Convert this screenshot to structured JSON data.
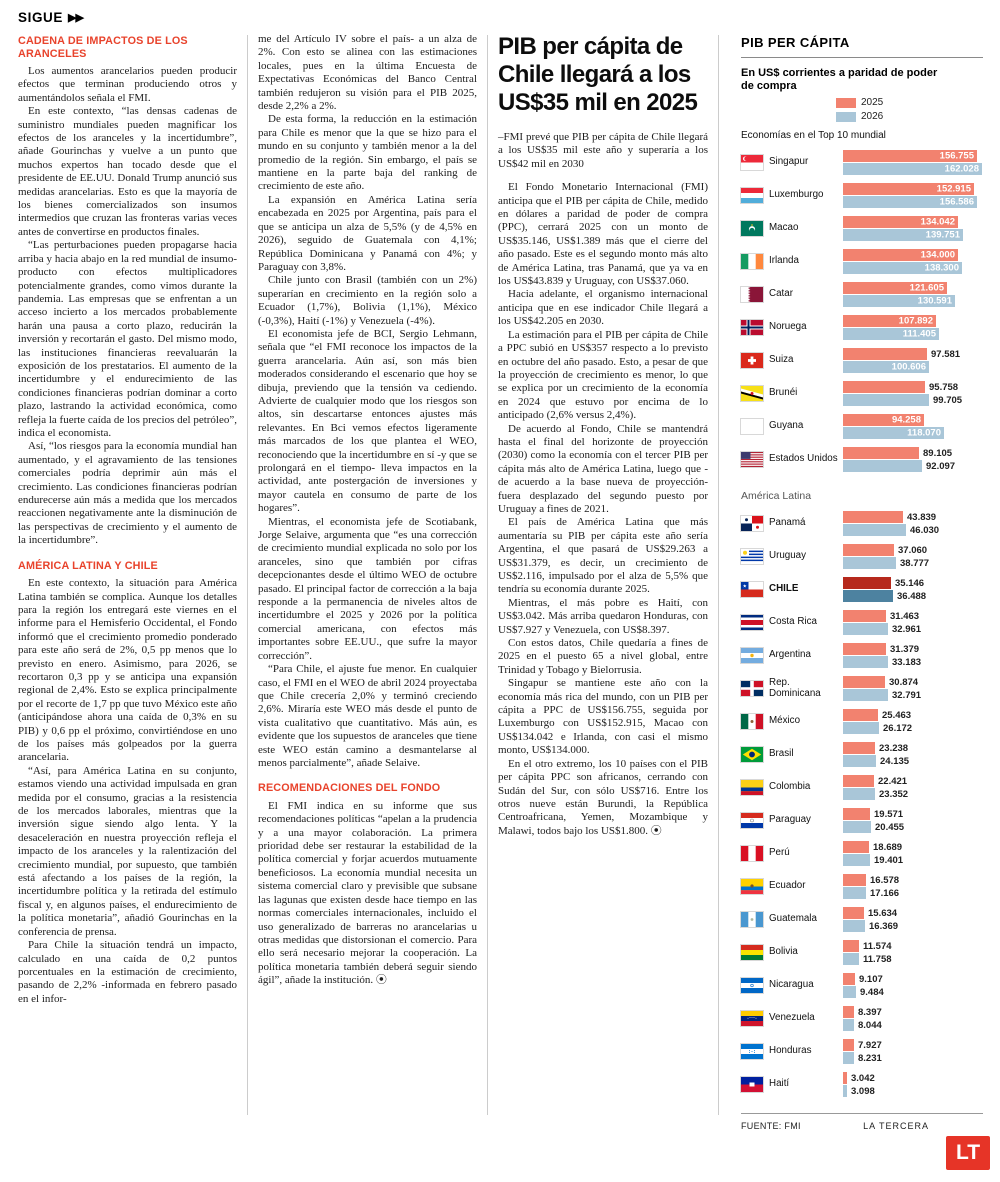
{
  "page": {
    "kicker": "SIGUE",
    "kicker_arrows": "▶▶"
  },
  "article": {
    "column1": {
      "sections": [
        {
          "heading": "CADENA DE IMPACTOS DE LOS ARANCELES",
          "paragraphs": [
            "Los aumentos arancelarios pueden producir efectos que terminan produciendo otros y aumentándolos señala el FMI.",
            "En este contexto, “las densas cadenas de suministro mundiales pueden magnificar los efectos de los aranceles y la incertidumbre”, añade Gourinchas y vuelve a un punto que muchos expertos han tocado desde que el presidente de EE.UU. Donald Trump anunció sus medidas arancelarias. Esto es que la mayoría de los bienes comercializados son insumos intermedios que cruzan las fronteras varias veces antes de convertirse en productos finales.",
            "“Las perturbaciones pueden propagarse hacia arriba y hacia abajo en la red mundial de insumo-producto con efectos multiplicadores potencialmente grandes, como vimos durante la pandemia. Las empresas que se enfrentan a un acceso incierto a los mercados probablemente harán una pausa a corto plazo, reducirán la inversión y recortarán el gasto. Del mismo modo, las instituciones financieras reevaluarán la exposición de los prestatarios. El aumento de la incertidumbre y el endurecimiento de las condiciones financieras podrían dominar a corto plazo, lastrando la actividad económica, como refleja la fuerte caída de los precios del petróleo”, indica el economista.",
            "Así, “los riesgos para la economía mundial han aumentado, y el agravamiento de las tensiones comerciales podría deprimir aún más el crecimiento. Las condiciones financieras podrían endurecerse aún más a medida que los mercados reaccionen negativamente ante la disminución de las perspectivas de crecimiento y el aumento de la incertidumbre”."
          ]
        },
        {
          "heading": "AMÉRICA LATINA Y CHILE",
          "paragraphs": [
            "En este contexto, la situación para América Latina también se complica. Aunque los detalles para la región los entregará este viernes en el informe para el Hemisferio Occidental, el Fondo informó que el crecimiento promedio ponderado para este año será de 2%, 0,5 pp menos que lo previsto en enero. Asimismo, para 2026, se recortaron 0,3 pp y se anticipa una expansión regional de 2,4%. Esto se explica principalmente por el recorte de 1,7 pp que tuvo México este año (anticipándose ahora una caída de 0,3% en su PIB) y 0,6 pp el próximo, convirtiéndose en uno de los países más golpeados por la guerra arancelaria.",
            "“Así, para América Latina en su conjunto, estamos viendo una actividad impulsada en gran medida por el consumo, gracias a la resistencia de los mercados laborales, mientras que la inversión sigue siendo algo lenta. Y la desaceleración en nuestra proyección refleja el impacto de los aranceles y la ralentización del crecimiento mundial, por supuesto, que también está afectando a los países de la región, la incertidumbre política y la retirada del estímulo fiscal y, en algunos países, el endurecimiento de la política monetaria”, añadió Gourinchas en la conferencia de prensa.",
            "Para Chile la situación tendrá un impacto, calculado en una caída de 0,2 puntos porcentuales en la estimación de crecimiento, pasando de 2,2% -informada en febrero pasado en el infor-"
          ]
        }
      ]
    },
    "column2": {
      "sections": [
        {
          "heading": null,
          "paragraphs": [
            "me del Artículo IV sobre el país- a un alza de 2%. Con esto se alinea con las estimaciones locales, pues en la última Encuesta de Expectativas Económicas del Banco Central también redujeron su visión para el PIB 2025, desde 2,2% a 2%.",
            "De esta forma, la reducción en la estimación para Chile es menor que la que se hizo para el mundo en su conjunto y también menor a la del promedio de la región. Sin embargo, el país se mantiene en la parte baja del ranking de crecimiento de este año.",
            "La expansión en América Latina sería encabezada en 2025 por Argentina, país para el que se anticipa un alza de 5,5% (y de 4,5% en 2026), seguido de Guatemala con 4,1%; República Dominicana y Panamá con 4%; y Paraguay con 3,8%.",
            "Chile junto con Brasil (también con un 2%) superarían en crecimiento en la región solo a Ecuador (1,7%), Bolivia (1,1%), México (-0,3%), Haití (-1%) y Venezuela (-4%).",
            "El economista jefe de BCI, Sergio Lehmann, señala que “el FMI reconoce los impactos de la guerra arancelaria. Aún así, son más bien moderados considerando el escenario que hoy se dibuja, previendo que la tensión va cediendo. Advierte de cualquier modo que los riesgos son altos, sin descartarse entonces ajustes más relevantes. En Bci vemos efectos ligeramente más marcados de los que plantea el WEO, reconociendo que la incertidumbre en sí -y que se prolongará en el tiempo- lleva impactos en la actividad, ante postergación de inversiones y mayor cautela en consumo de parte de los hogares”.",
            "Mientras, el economista jefe de Scotiabank, Jorge Selaive, argumenta que “es una corrección de crecimiento mundial explicada no solo por los aranceles, sino que también por cifras decepcionantes desde el último WEO de octubre pasado. El principal factor de corrección a la baja responde a la permanencia de niveles altos de incertidumbre el 2025 y 2026 por la política comercial americana, con efectos más importantes sobre EE.UU., que sufre la mayor corrección”.",
            "“Para Chile, el ajuste fue menor. En cualquier caso, el FMI en el WEO de abril 2024 proyectaba que Chile crecería 2,0% y terminó creciendo 2,6%. Miraría este WEO más desde el punto de vista cualitativo que cuantitativo. Más aún, es evidente que los supuestos de aranceles que tiene este WEO están camino a desmantelarse al menos parcialmente”, añade Selaive."
          ]
        },
        {
          "heading": "RECOMENDACIONES DEL FONDO",
          "paragraphs": [
            "El FMI indica en su informe que sus recomendaciones políticas “apelan a la prudencia y a una mayor colaboración. La primera prioridad debe ser restaurar la estabilidad de la política comercial y forjar acuerdos mutuamente beneficiosos. La economía mundial necesita un sistema comercial claro y previsible que subsane las lagunas que existen desde hace tiempo en las normas comerciales internacionales, incluido el uso generalizado de barreras no arancelarias u otras medidas que distorsionan el comercio. Para ello será necesario mejorar la cooperación. La política monetaria también deberá seguir siendo ágil”, añade la institución. ⦿"
          ]
        }
      ]
    },
    "column3": {
      "headline": "PIB per cápita de Chile llegará a los US$35 mil en 2025",
      "deck": "–FMI prevé que PIB per cápita de Chile llegará a los US$35 mil este año y superaría a los US$42 mil en 2030",
      "paragraphs": [
        "El Fondo Monetario Internacional (FMI) anticipa que el PIB per cápita de Chile, medido en dólares a paridad de poder de compra (PPC), cerrará 2025 con un monto de US$35.146, US$1.389 más que el cierre del año pasado. Este es el segundo monto más alto de América Latina, tras Panamá, que ya va en los US$43.839 y Uruguay, con US$37.060.",
        "Hacia adelante, el organismo internacional anticipa que en ese indicador Chile llegará a los US$42.205 en 2030.",
        "La estimación para el PIB per cápita de Chile a PPC subió en US$357 respecto a lo previsto en octubre del año pasado. Esto, a pesar de que la proyección de crecimiento es menor, lo que se explica por un crecimiento de la economía en 2024 que estuvo por encima de lo anticipado (2,6% versus 2,4%).",
        "De acuerdo al Fondo, Chile se mantendrá hasta el final del horizonte de proyección (2030) como la economía con el tercer PIB per cápita más alto de América Latina, luego que -de acuerdo a la base nueva de proyección- fuera desplazado del segundo puesto por Uruguay a fines de 2021.",
        "El país de América Latina que más aumentaría su PIB per cápita este año sería Argentina, el que pasará de US$29.263 a US$31.379, es decir, un crecimiento de US$2.116, impulsado por el alza de 5,5% que tendría su economía durante 2025.",
        "Mientras, el más pobre es Haití, con US$3.042. Más arriba quedaron Honduras, con US$7.927 y Venezuela, con US$8.397.",
        "Con estos datos, Chile quedaría a fines de 2025 en el puesto 65 a nivel global, entre Trinidad y Tobago y Bielorrusia.",
        "Singapur se mantiene este año con la economía más rica del mundo, con un PIB per cápita a PPC de US$156.755, seguida por Luxemburgo con US$152.915, Macao con US$134.042 e Irlanda, con casi el mismo monto, US$134.000.",
        "En el otro extremo, los 10 países con el PIB per cápita PPC son africanos, cerrando con Sudán del Sur, con sólo US$716. Entre los otros nueve están Burundi, la República Centroafricana, Yemen, Mozambique y Malawi, todos bajo los US$1.800. ⦿"
      ]
    }
  },
  "chart_data": {
    "type": "bar",
    "title": "PIB PER CÁPITA",
    "subtitle": "En US$ corrientes a paridad de poder de compra",
    "legend": [
      {
        "label": "2025",
        "color": "#f2826f"
      },
      {
        "label": "2026",
        "color": "#a9c6d8"
      }
    ],
    "highlight_colors": [
      "#b6291c",
      "#4d82a0"
    ],
    "groups": [
      {
        "label": "Economías en el Top 10 mundial",
        "max": 162028,
        "countries": [
          {
            "name": "Singapur",
            "flag": "singapore",
            "values": [
              156755,
              162028
            ],
            "labels": [
              "156.755",
              "162.028"
            ],
            "inside": [
              true,
              true
            ]
          },
          {
            "name": "Luxemburgo",
            "flag": "luxembourg",
            "values": [
              152915,
              156586
            ],
            "labels": [
              "152.915",
              "156.586"
            ],
            "inside": [
              true,
              true
            ]
          },
          {
            "name": "Macao",
            "flag": "macao",
            "values": [
              134042,
              139751
            ],
            "labels": [
              "134.042",
              "139.751"
            ],
            "inside": [
              true,
              true
            ]
          },
          {
            "name": "Irlanda",
            "flag": "ireland",
            "values": [
              134000,
              138300
            ],
            "labels": [
              "134.000",
              "138.300"
            ],
            "inside": [
              true,
              true
            ]
          },
          {
            "name": "Catar",
            "flag": "qatar",
            "values": [
              121605,
              130591
            ],
            "labels": [
              "121.605",
              "130.591"
            ],
            "inside": [
              true,
              true
            ]
          },
          {
            "name": "Noruega",
            "flag": "norway",
            "values": [
              107892,
              111405
            ],
            "labels": [
              "107.892",
              "111.405"
            ],
            "inside": [
              true,
              true
            ]
          },
          {
            "name": "Suiza",
            "flag": "switzerland",
            "values": [
              97581,
              100606
            ],
            "labels": [
              "97.581",
              "100.606"
            ],
            "inside": [
              false,
              true
            ]
          },
          {
            "name": "Brunéi",
            "flag": "brunei",
            "values": [
              95758,
              99705
            ],
            "labels": [
              "95.758",
              "99.705"
            ],
            "inside": [
              false,
              false
            ]
          },
          {
            "name": "Guyana",
            "flag": "guyana",
            "values": [
              94258,
              118070
            ],
            "labels": [
              "94.258",
              "118.070"
            ],
            "inside": [
              true,
              true
            ]
          },
          {
            "name": "Estados Unidos",
            "flag": "usa",
            "values": [
              89105,
              92097
            ],
            "labels": [
              "89.105",
              "92.097"
            ],
            "inside": [
              false,
              false
            ]
          }
        ]
      },
      {
        "label": "América Latina",
        "max": 46030,
        "countries": [
          {
            "name": "Panamá",
            "flag": "panama",
            "values": [
              43839,
              46030
            ],
            "labels": [
              "43.839",
              "46.030"
            ],
            "inside": [
              false,
              false
            ]
          },
          {
            "name": "Uruguay",
            "flag": "uruguay",
            "values": [
              37060,
              38777
            ],
            "labels": [
              "37.060",
              "38.777"
            ],
            "inside": [
              false,
              false
            ]
          },
          {
            "name": "CHILE",
            "flag": "chile",
            "values": [
              35146,
              36488
            ],
            "labels": [
              "35.146",
              "36.488"
            ],
            "inside": [
              false,
              false
            ],
            "highlight": true
          },
          {
            "name": "Costa Rica",
            "flag": "costarica",
            "values": [
              31463,
              32961
            ],
            "labels": [
              "31.463",
              "32.961"
            ],
            "inside": [
              false,
              false
            ]
          },
          {
            "name": "Argentina",
            "flag": "argentina",
            "values": [
              31379,
              33183
            ],
            "labels": [
              "31.379",
              "33.183"
            ],
            "inside": [
              false,
              false
            ]
          },
          {
            "name": "Rep. Dominicana",
            "flag": "dominican",
            "values": [
              30874,
              32791
            ],
            "labels": [
              "30.874",
              "32.791"
            ],
            "inside": [
              false,
              false
            ]
          },
          {
            "name": "México",
            "flag": "mexico",
            "values": [
              25463,
              26172
            ],
            "labels": [
              "25.463",
              "26.172"
            ],
            "inside": [
              false,
              false
            ]
          },
          {
            "name": "Brasil",
            "flag": "brazil",
            "values": [
              23238,
              24135
            ],
            "labels": [
              "23.238",
              "24.135"
            ],
            "inside": [
              false,
              false
            ]
          },
          {
            "name": "Colombia",
            "flag": "colombia",
            "values": [
              22421,
              23352
            ],
            "labels": [
              "22.421",
              "23.352"
            ],
            "inside": [
              false,
              false
            ]
          },
          {
            "name": "Paraguay",
            "flag": "paraguay",
            "values": [
              19571,
              20455
            ],
            "labels": [
              "19.571",
              "20.455"
            ],
            "inside": [
              false,
              false
            ]
          },
          {
            "name": "Perú",
            "flag": "peru",
            "values": [
              18689,
              19401
            ],
            "labels": [
              "18.689",
              "19.401"
            ],
            "inside": [
              false,
              false
            ]
          },
          {
            "name": "Ecuador",
            "flag": "ecuador",
            "values": [
              16578,
              17166
            ],
            "labels": [
              "16.578",
              "17.166"
            ],
            "inside": [
              false,
              false
            ]
          },
          {
            "name": "Guatemala",
            "flag": "guatemala",
            "values": [
              15634,
              16369
            ],
            "labels": [
              "15.634",
              "16.369"
            ],
            "inside": [
              false,
              false
            ]
          },
          {
            "name": "Bolivia",
            "flag": "bolivia",
            "values": [
              11574,
              11758
            ],
            "labels": [
              "11.574",
              "11.758"
            ],
            "inside": [
              false,
              false
            ]
          },
          {
            "name": "Nicaragua",
            "flag": "nicaragua",
            "values": [
              9107,
              9484
            ],
            "labels": [
              "9.107",
              "9.484"
            ],
            "inside": [
              false,
              false
            ]
          },
          {
            "name": "Venezuela",
            "flag": "venezuela",
            "values": [
              8397,
              8044
            ],
            "labels": [
              "8.397",
              "8.044"
            ],
            "inside": [
              false,
              false
            ]
          },
          {
            "name": "Honduras",
            "flag": "honduras",
            "values": [
              7927,
              8231
            ],
            "labels": [
              "7.927",
              "8.231"
            ],
            "inside": [
              false,
              false
            ]
          },
          {
            "name": "Haití",
            "flag": "haiti",
            "values": [
              3042,
              3098
            ],
            "labels": [
              "3.042",
              "3.098"
            ],
            "inside": [
              false,
              false
            ]
          }
        ]
      }
    ],
    "source": "FUENTE: FMI",
    "credit": "LA TERCERA"
  },
  "footer": {
    "logo": "LT"
  }
}
